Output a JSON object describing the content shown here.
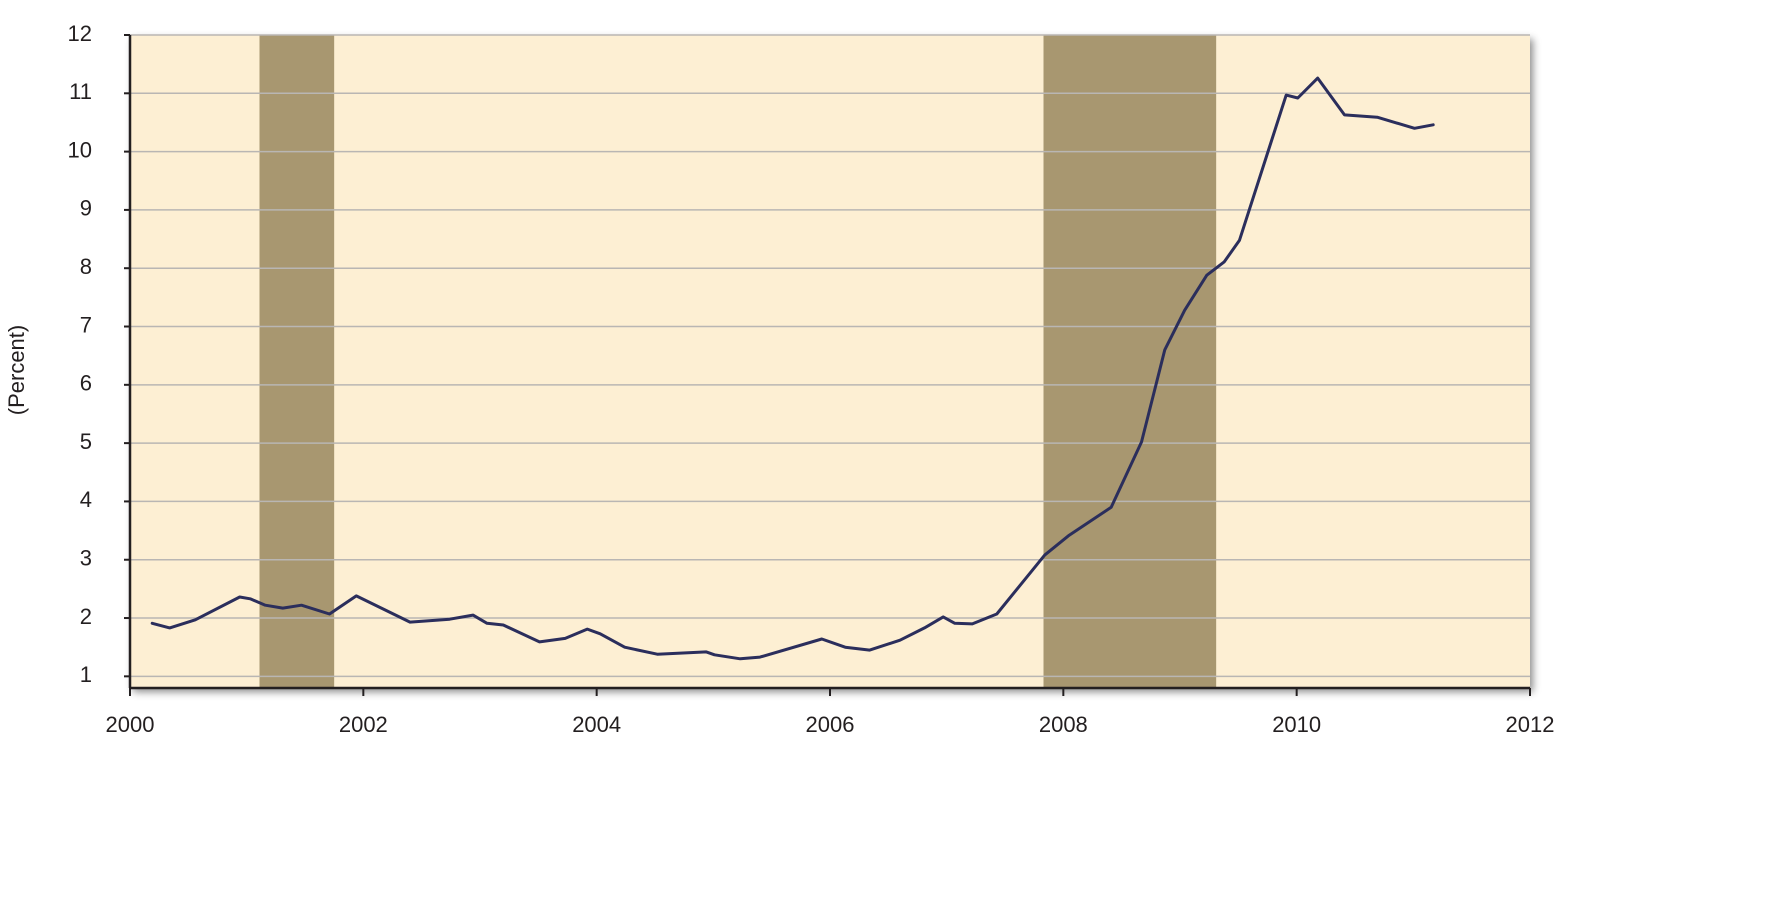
{
  "chart_data": {
    "type": "line",
    "y_label": "(Percent)",
    "xlim": [
      2000,
      2012
    ],
    "xticks": [
      2000,
      2002,
      2004,
      2006,
      2008,
      2010,
      2012
    ],
    "ylim": [
      0.8,
      12
    ],
    "yticks": [
      1,
      2,
      3,
      4,
      5,
      6,
      7,
      8,
      9,
      10,
      11,
      12
    ],
    "grid": true,
    "background": "#fdefd3",
    "shading_color": "#a89770",
    "shading": [
      [
        2001.11,
        2001.75
      ],
      [
        2007.83,
        2009.31
      ]
    ],
    "series": [
      {
        "color": "#2b2e5c",
        "x": [
          2000.19,
          2000.34,
          2000.56,
          2000.94,
          2001.03,
          2001.16,
          2001.31,
          2001.47,
          2001.71,
          2001.94,
          2002.4,
          2002.74,
          2002.94,
          2003.06,
          2003.2,
          2003.51,
          2003.73,
          2003.92,
          2004.03,
          2004.24,
          2004.52,
          2004.94,
          2005.01,
          2005.23,
          2005.4,
          2005.93,
          2006.13,
          2006.34,
          2006.6,
          2006.81,
          2006.97,
          2007.07,
          2007.22,
          2007.43,
          2007.84,
          2008.05,
          2008.41,
          2008.67,
          2008.87,
          2009.04,
          2009.23,
          2009.38,
          2009.51,
          2009.91,
          2010.01,
          2010.18,
          2010.41,
          2010.69,
          2011.01,
          2011.17
        ],
        "values": [
          1.91,
          1.83,
          1.97,
          2.36,
          2.33,
          2.22,
          2.17,
          2.22,
          2.07,
          2.38,
          1.93,
          1.98,
          2.05,
          1.91,
          1.88,
          1.59,
          1.65,
          1.81,
          1.73,
          1.5,
          1.38,
          1.42,
          1.37,
          1.3,
          1.33,
          1.64,
          1.5,
          1.45,
          1.62,
          1.83,
          2.02,
          1.91,
          1.9,
          2.07,
          3.08,
          3.42,
          3.9,
          5.02,
          6.6,
          7.28,
          7.88,
          8.11,
          8.48,
          10.97,
          10.92,
          11.26,
          10.63,
          10.59,
          10.4,
          10.46
        ]
      }
    ]
  }
}
